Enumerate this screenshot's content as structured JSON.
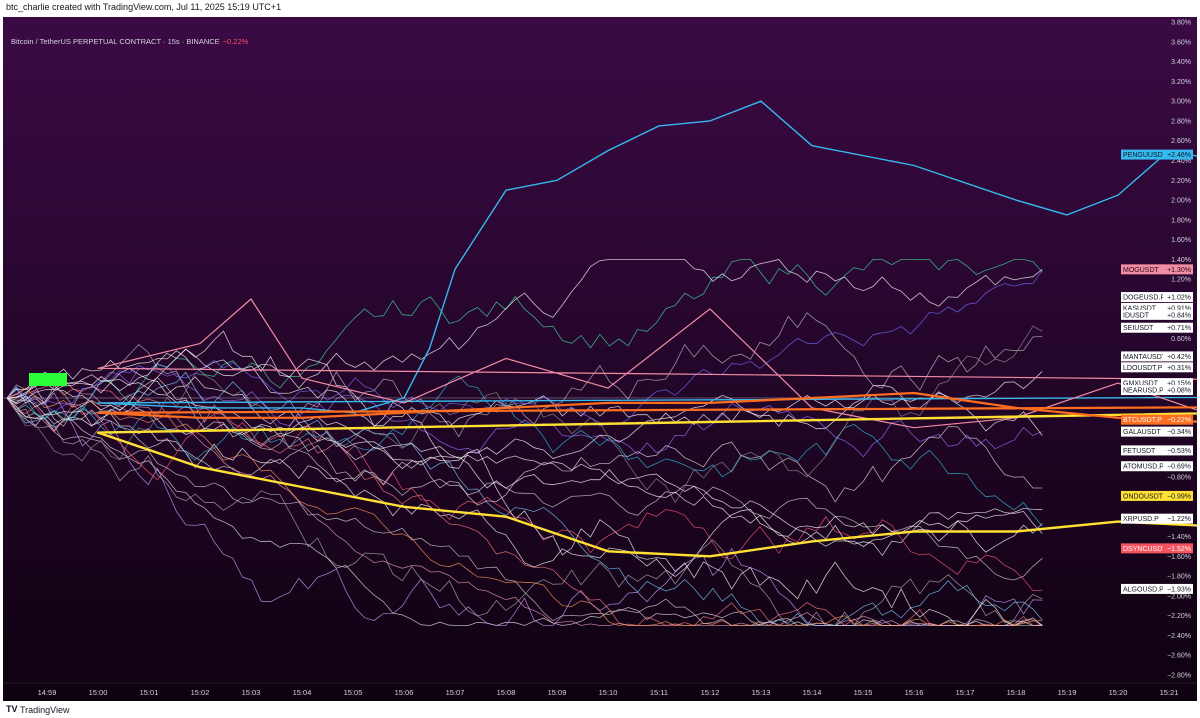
{
  "header": {
    "attribution": "btc_charlie created with TradingView.com, Jul 11, 2025 15:19 UTC+1"
  },
  "symbol": {
    "name": "Bitcoin / TetherUS PERPETUAL CONTRACT · 15s · BINANCE",
    "change": "−0.22%"
  },
  "footer": {
    "logo": "TV",
    "brand": "TradingView"
  },
  "colors": {
    "background_top": "#3b0a45",
    "background_bottom": "#0e0210",
    "btc": "#ff6d1f",
    "ondo": "#ffe033",
    "pengu": "#36b9ee",
    "mog": "#f28ca4"
  },
  "chart_data": {
    "type": "line",
    "y_unit": "%",
    "ylim": [
      -2.8,
      3.8
    ],
    "x_ticks": [
      "14:59",
      "15:00",
      "15:01",
      "15:02",
      "15:03",
      "15:04",
      "15:05",
      "15:06",
      "15:07",
      "15:08",
      "15:09",
      "15:10",
      "15:11",
      "15:12",
      "15:13",
      "15:14",
      "15:15",
      "15:16",
      "15:17",
      "15:18",
      "15:19",
      "15:20",
      "15:21"
    ],
    "y_ticks": [
      "3.80%",
      "3.60%",
      "3.40%",
      "3.20%",
      "3.00%",
      "2.80%",
      "2.60%",
      "2.40%",
      "2.20%",
      "2.00%",
      "1.80%",
      "1.60%",
      "1.40%",
      "1.20%",
      "0.60%",
      "−0.80%",
      "−1.40%",
      "−1.60%",
      "−1.80%",
      "−2.00%",
      "−2.20%",
      "−2.40%",
      "−2.60%",
      "−2.80%"
    ],
    "grid": false,
    "series": [
      {
        "name": "PENGUUSDT",
        "color": "#36b9ee",
        "last": 2.46,
        "width": 1.4,
        "points": [
          [
            14.97,
            0
          ],
          [
            14.99,
            0.05
          ],
          [
            15.0,
            -0.05
          ],
          [
            15.02,
            -0.1
          ],
          [
            15.04,
            -0.1
          ],
          [
            15.05,
            -0.15
          ],
          [
            15.06,
            0
          ],
          [
            15.065,
            0.5
          ],
          [
            15.07,
            1.3
          ],
          [
            15.08,
            2.1
          ],
          [
            15.09,
            2.2
          ],
          [
            15.1,
            2.5
          ],
          [
            15.11,
            2.75
          ],
          [
            15.12,
            2.8
          ],
          [
            15.13,
            3.0
          ],
          [
            15.14,
            2.55
          ],
          [
            15.16,
            2.35
          ],
          [
            15.18,
            2.0
          ],
          [
            15.19,
            1.85
          ],
          [
            15.2,
            2.05
          ],
          [
            15.21,
            2.5
          ],
          [
            15.22,
            2.4
          ],
          [
            15.23,
            2.55
          ],
          [
            15.24,
            2.9
          ],
          [
            15.25,
            2.7
          ],
          [
            15.26,
            3.0
          ],
          [
            15.27,
            2.3
          ],
          [
            15.28,
            2.5
          ],
          [
            15.29,
            2.4
          ],
          [
            15.3,
            2.15
          ],
          [
            15.31,
            2.35
          ],
          [
            15.32,
            2.3
          ],
          [
            15.33,
            2.1
          ],
          [
            15.34,
            2.6
          ],
          [
            15.35,
            2.6
          ],
          [
            15.36,
            2.0
          ],
          [
            15.37,
            1.9
          ],
          [
            15.38,
            2.05
          ],
          [
            15.39,
            1.95
          ],
          [
            15.4,
            1.7
          ],
          [
            15.41,
            1.4
          ],
          [
            15.42,
            1.15
          ],
          [
            15.43,
            0.95
          ],
          [
            15.44,
            1.2
          ],
          [
            15.45,
            1.45
          ],
          [
            15.46,
            1.7
          ],
          [
            15.47,
            1.9
          ],
          [
            15.48,
            2.1
          ],
          [
            15.49,
            2.5
          ],
          [
            15.5,
            3.1
          ],
          [
            15.51,
            2.7
          ],
          [
            15.52,
            2.7
          ],
          [
            15.53,
            2.6
          ],
          [
            15.54,
            2.3
          ],
          [
            15.55,
            2.05
          ],
          [
            15.56,
            2.3
          ],
          [
            15.57,
            2.25
          ],
          [
            15.58,
            2.4
          ],
          [
            15.59,
            2.6
          ],
          [
            15.6,
            2.46
          ]
        ]
      },
      {
        "name": "MOGUSDT",
        "color": "#f28ca4",
        "last": 1.3,
        "width": 1.2,
        "points": [
          [
            14.97,
            0
          ],
          [
            14.98,
            0.5
          ],
          [
            14.99,
            0.1
          ],
          [
            15.0,
            0.3
          ],
          [
            15.02,
            0.55
          ],
          [
            15.03,
            1.0
          ],
          [
            15.04,
            0.2
          ],
          [
            15.06,
            -0.05
          ],
          [
            15.08,
            0.4
          ],
          [
            15.1,
            0.1
          ],
          [
            15.12,
            0.9
          ],
          [
            15.14,
            -0.1
          ],
          [
            15.16,
            -0.3
          ],
          [
            15.18,
            -0.2
          ],
          [
            15.2,
            0.15
          ],
          [
            15.22,
            -0.2
          ],
          [
            15.24,
            0.3
          ],
          [
            15.26,
            0.2
          ],
          [
            15.28,
            0.25
          ],
          [
            15.3,
            0.55
          ],
          [
            15.32,
            0.1
          ],
          [
            15.34,
            0.1
          ],
          [
            15.36,
            0.55
          ],
          [
            15.38,
            0.85
          ],
          [
            15.4,
            0.9
          ],
          [
            15.42,
            1.05
          ],
          [
            15.44,
            1.2
          ],
          [
            15.46,
            0.75
          ],
          [
            15.48,
            1.0
          ],
          [
            15.5,
            0.55
          ],
          [
            15.52,
            0.7
          ],
          [
            15.54,
            0.9
          ],
          [
            15.56,
            1.2
          ],
          [
            15.58,
            1.1
          ],
          [
            15.59,
            1.4
          ],
          [
            15.6,
            1.3
          ]
        ]
      },
      {
        "name": "ONDOUSDT",
        "color": "#ffe033",
        "last": -0.99,
        "width": 2.4,
        "points": [
          [
            14.97,
            0
          ],
          [
            14.98,
            0.05
          ],
          [
            14.99,
            0
          ],
          [
            15.0,
            -0.35
          ],
          [
            15.02,
            -0.7
          ],
          [
            15.04,
            -0.9
          ],
          [
            15.06,
            -1.1
          ],
          [
            15.08,
            -1.2
          ],
          [
            15.1,
            -1.55
          ],
          [
            15.12,
            -1.6
          ],
          [
            15.14,
            -1.45
          ],
          [
            15.16,
            -1.35
          ],
          [
            15.18,
            -1.35
          ],
          [
            15.2,
            -1.25
          ],
          [
            15.22,
            -1.3
          ],
          [
            15.24,
            -1.4
          ],
          [
            15.26,
            -1.25
          ],
          [
            15.28,
            -1.4
          ],
          [
            15.3,
            -1.35
          ],
          [
            15.32,
            -1.15
          ],
          [
            15.34,
            -1.1
          ],
          [
            15.36,
            -1.05
          ],
          [
            15.38,
            -1.25
          ],
          [
            15.4,
            -0.95
          ],
          [
            15.42,
            -1.0
          ],
          [
            15.44,
            -1.3
          ],
          [
            15.46,
            -1.6
          ],
          [
            15.48,
            -1.35
          ],
          [
            15.5,
            -1.45
          ],
          [
            15.52,
            -1.5
          ],
          [
            15.54,
            -1.35
          ],
          [
            15.56,
            -1.45
          ],
          [
            15.58,
            -1.2
          ],
          [
            15.6,
            -1.3
          ],
          [
            15.62,
            -1.5
          ],
          [
            15.64,
            -1.35
          ],
          [
            15.66,
            -1.35
          ],
          [
            15.68,
            -1.25
          ],
          [
            15.7,
            -1.3
          ],
          [
            15.72,
            -1.35
          ],
          [
            15.74,
            -1.15
          ],
          [
            15.76,
            -1.3
          ],
          [
            15.78,
            -1.25
          ],
          [
            15.8,
            -1.35
          ],
          [
            15.82,
            -1.3
          ],
          [
            15.84,
            -1.25
          ],
          [
            15.86,
            -1.1
          ],
          [
            15.88,
            -1.05
          ],
          [
            15.9,
            -0.95
          ],
          [
            15.91,
            -1.1
          ],
          [
            15.92,
            -1.0
          ],
          [
            15.93,
            -1.05
          ],
          [
            15.94,
            -0.95
          ],
          [
            15.95,
            -0.85
          ],
          [
            15.96,
            -0.9
          ],
          [
            15.97,
            -0.99
          ]
        ]
      },
      {
        "name": "BTCUSDT.P",
        "color": "#ff6d1f",
        "last": -0.22,
        "width": 2.2,
        "points": [
          [
            14.97,
            0
          ],
          [
            14.99,
            -0.05
          ],
          [
            15.0,
            -0.15
          ],
          [
            15.02,
            -0.2
          ],
          [
            15.04,
            -0.2
          ],
          [
            15.06,
            -0.15
          ],
          [
            15.08,
            -0.1
          ],
          [
            15.1,
            -0.05
          ],
          [
            15.12,
            -0.05
          ],
          [
            15.14,
            0.0
          ],
          [
            15.16,
            0.05
          ],
          [
            15.18,
            -0.1
          ],
          [
            15.2,
            -0.2
          ],
          [
            15.22,
            -0.25
          ],
          [
            15.24,
            -0.15
          ],
          [
            15.26,
            -0.15
          ],
          [
            15.28,
            -0.2
          ],
          [
            15.3,
            -0.15
          ],
          [
            15.32,
            -0.15
          ],
          [
            15.34,
            -0.15
          ],
          [
            15.36,
            -0.2
          ],
          [
            15.38,
            -0.2
          ],
          [
            15.4,
            -0.15
          ],
          [
            15.42,
            -0.2
          ],
          [
            15.44,
            -0.2
          ],
          [
            15.46,
            -0.25
          ],
          [
            15.48,
            -0.15
          ],
          [
            15.5,
            -0.2
          ],
          [
            15.52,
            -0.25
          ],
          [
            15.54,
            -0.2
          ],
          [
            15.56,
            -0.25
          ],
          [
            15.58,
            -0.2
          ],
          [
            15.6,
            -0.22
          ]
        ]
      }
    ],
    "labels": [
      {
        "text": "PENGUUSDT",
        "value": "+2.46%",
        "y": 2.46,
        "bg": "#36b9ee",
        "fg": "#0a1a2a"
      },
      {
        "text": "MOGUSDT",
        "value": "+1.30%",
        "y": 1.3,
        "bg": "#f28ca4",
        "fg": "#2a0a12"
      },
      {
        "text": "DOGEUSD.P",
        "value": "+1.02%",
        "y": 1.02,
        "bg": "#ffffff",
        "fg": "#131722"
      },
      {
        "text": "KASUSDT",
        "value": "+0.91%",
        "y": 0.91,
        "bg": "#ffffff",
        "fg": "#131722"
      },
      {
        "text": "IDUSDT",
        "value": "+0.84%",
        "y": 0.84,
        "bg": "#ffffff",
        "fg": "#131722"
      },
      {
        "text": "SEIUSDT",
        "value": "+0.71%",
        "y": 0.71,
        "bg": "#ffffff",
        "fg": "#131722"
      },
      {
        "text": "MANTAUSDT",
        "value": "+0.42%",
        "y": 0.42,
        "bg": "#ffffff",
        "fg": "#131722"
      },
      {
        "text": "LDOUSDT.P",
        "value": "+0.31%",
        "y": 0.31,
        "bg": "#ffffff",
        "fg": "#131722"
      },
      {
        "text": "GMXUSDT",
        "value": "+0.15%",
        "y": 0.15,
        "bg": "#ffffff",
        "fg": "#131722"
      },
      {
        "text": "NEARUSD.P",
        "value": "+0.08%",
        "y": 0.08,
        "bg": "#ffffff",
        "fg": "#131722"
      },
      {
        "text": "BTCUSDT.P",
        "value": "−0.22%",
        "y": -0.22,
        "bg": "#ff6d1f",
        "fg": "#ffffff"
      },
      {
        "text": "GALAUSDT",
        "value": "−0.34%",
        "y": -0.34,
        "bg": "#ffffff",
        "fg": "#131722"
      },
      {
        "text": "FETUSDT",
        "value": "−0.53%",
        "y": -0.53,
        "bg": "#ffffff",
        "fg": "#131722"
      },
      {
        "text": "ATOMUSD.P",
        "value": "−0.69%",
        "y": -0.69,
        "bg": "#ffffff",
        "fg": "#131722"
      },
      {
        "text": "ONDOUSDT",
        "value": "−0.99%",
        "y": -0.99,
        "bg": "#ffe033",
        "fg": "#131722"
      },
      {
        "text": "XRPUSD.P",
        "value": "−1.22%",
        "y": -1.22,
        "bg": "#ffffff",
        "fg": "#131722"
      },
      {
        "text": "DSYNCUSDT",
        "value": "−1.52%",
        "y": -1.52,
        "bg": "#f7525f",
        "fg": "#ffffff"
      },
      {
        "text": "ALGOUSD.P",
        "value": "−1.93%",
        "y": -1.93,
        "bg": "#ffffff",
        "fg": "#131722"
      }
    ]
  }
}
